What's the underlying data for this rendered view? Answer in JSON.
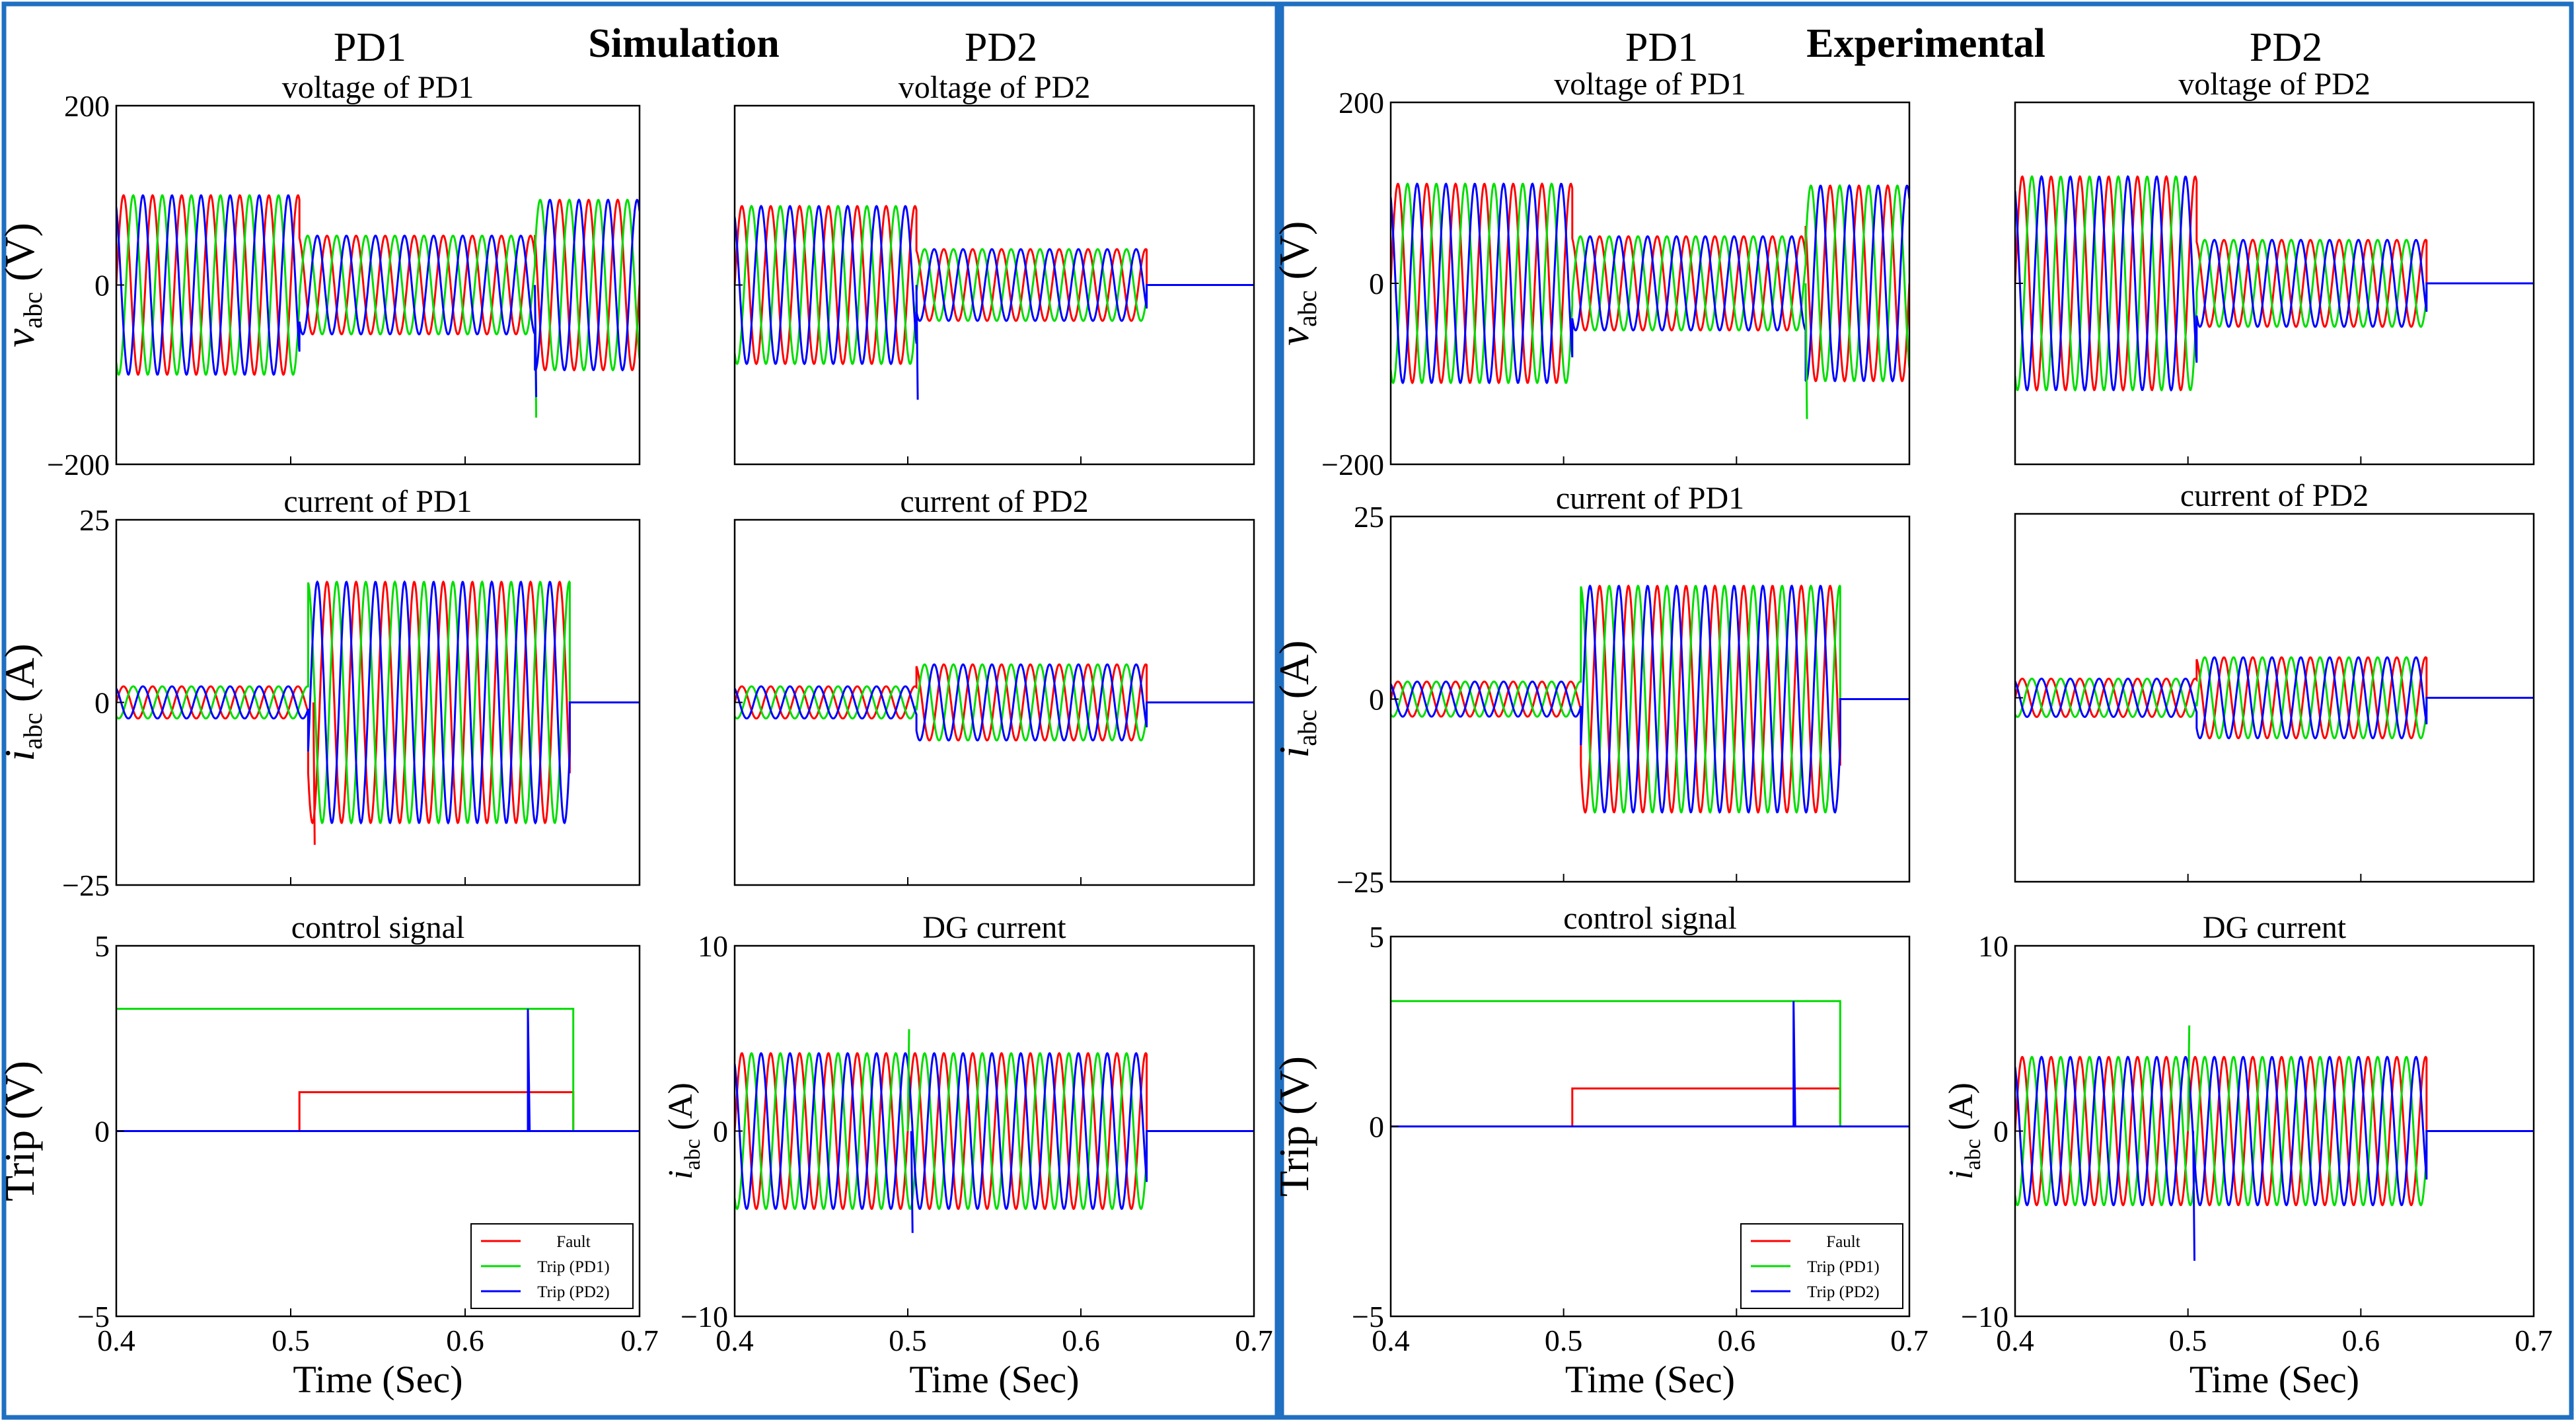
{
  "colors": {
    "frame": "#1f6fc2",
    "axes": "#000000",
    "phase_a": "#ff0000",
    "phase_b": "#00dd00",
    "phase_c": "#0000ff",
    "fault": "#ff0000",
    "trip_pd1": "#00dd00",
    "trip_pd2": "#0000ff"
  },
  "panels": [
    {
      "id": "simulation",
      "title": "Simulation",
      "col_titles": [
        "PD1",
        "PD2"
      ]
    },
    {
      "id": "experimental",
      "title": "Experimental",
      "col_titles": [
        "PD1",
        "PD2"
      ]
    }
  ],
  "x_common": {
    "xlim": [
      0.4,
      0.7
    ],
    "ticks": [
      "0.4",
      "0.5",
      "0.6",
      "0.7"
    ],
    "tick_values": [
      0.4,
      0.5,
      0.6,
      0.7
    ],
    "xlabel": "Time (Sec)"
  },
  "ylabels": {
    "voltage": "v",
    "current": "i",
    "subscript": "abc",
    "voltage_unit": " (V)",
    "current_unit": " (A)",
    "trip": "Trip (V)"
  },
  "legend": {
    "entries": [
      "Fault",
      "Trip (PD1)",
      "Trip (PD2)"
    ]
  },
  "chart_data": [
    {
      "panel": "simulation",
      "col": 0,
      "row": 0,
      "type": "line",
      "title": "voltage of PD1",
      "ylim": [
        -200,
        200
      ],
      "yticks": [
        -200,
        0,
        200
      ],
      "ytick_labels": [
        "−200",
        "0",
        "200"
      ],
      "series": [
        {
          "name": "phase a",
          "segments": [
            {
              "t0": 0.4,
              "t1": 0.505,
              "amp": 100
            },
            {
              "t0": 0.505,
              "t1": 0.64,
              "amp": 55
            },
            {
              "t0": 0.64,
              "t1": 0.7,
              "amp": 95
            }
          ]
        },
        {
          "name": "phase b",
          "segments": [
            {
              "t0": 0.4,
              "t1": 0.505,
              "amp": 100
            },
            {
              "t0": 0.505,
              "t1": 0.64,
              "amp": 55
            },
            {
              "t0": 0.64,
              "t1": 0.7,
              "amp": 95
            }
          ]
        },
        {
          "name": "phase c",
          "segments": [
            {
              "t0": 0.4,
              "t1": 0.505,
              "amp": 100
            },
            {
              "t0": 0.505,
              "t1": 0.64,
              "amp": 55
            },
            {
              "t0": 0.64,
              "t1": 0.7,
              "amp": 95
            }
          ]
        }
      ],
      "spikes": [
        {
          "t": 0.64,
          "v": -148,
          "series": 1
        },
        {
          "t": 0.64,
          "v": -125,
          "series": 2
        }
      ]
    },
    {
      "panel": "simulation",
      "col": 1,
      "row": 0,
      "type": "line",
      "title": "voltage of PD2",
      "ylim": [
        -200,
        200
      ],
      "yticks": [
        -200,
        0,
        200
      ],
      "ytick_labels": [
        "",
        "",
        ""
      ],
      "series": [
        {
          "name": "phase a",
          "segments": [
            {
              "t0": 0.4,
              "t1": 0.505,
              "amp": 88
            },
            {
              "t0": 0.505,
              "t1": 0.638,
              "amp": 40
            }
          ]
        },
        {
          "name": "phase b",
          "segments": [
            {
              "t0": 0.4,
              "t1": 0.505,
              "amp": 88
            },
            {
              "t0": 0.505,
              "t1": 0.638,
              "amp": 40
            }
          ]
        },
        {
          "name": "phase c",
          "segments": [
            {
              "t0": 0.4,
              "t1": 0.505,
              "amp": 88
            },
            {
              "t0": 0.505,
              "t1": 0.638,
              "amp": 40
            }
          ]
        }
      ],
      "spikes": [
        {
          "t": 0.505,
          "v": -128,
          "series": 2
        }
      ]
    },
    {
      "panel": "simulation",
      "col": 0,
      "row": 1,
      "type": "line",
      "title": "current of PD1",
      "ylim": [
        -25,
        25
      ],
      "yticks": [
        -25,
        0,
        25
      ],
      "ytick_labels": [
        "−25",
        "0",
        "25"
      ],
      "series": [
        {
          "name": "phase a",
          "segments": [
            {
              "t0": 0.4,
              "t1": 0.51,
              "amp": 2.2
            },
            {
              "t0": 0.51,
              "t1": 0.66,
              "amp": 16.5
            }
          ]
        },
        {
          "name": "phase b",
          "segments": [
            {
              "t0": 0.4,
              "t1": 0.51,
              "amp": 2.2
            },
            {
              "t0": 0.51,
              "t1": 0.66,
              "amp": 16.5
            }
          ]
        },
        {
          "name": "phase c",
          "segments": [
            {
              "t0": 0.4,
              "t1": 0.51,
              "amp": 2.2
            },
            {
              "t0": 0.51,
              "t1": 0.66,
              "amp": 16.5
            }
          ]
        }
      ],
      "spikes": [
        {
          "t": 0.513,
          "v": -19.5,
          "series": 0
        }
      ]
    },
    {
      "panel": "simulation",
      "col": 1,
      "row": 1,
      "type": "line",
      "title": "current of PD2",
      "ylim": [
        -25,
        25
      ],
      "yticks": [
        -25,
        0,
        25
      ],
      "ytick_labels": [
        "",
        "",
        ""
      ],
      "series": [
        {
          "name": "phase a",
          "segments": [
            {
              "t0": 0.4,
              "t1": 0.505,
              "amp": 2.2
            },
            {
              "t0": 0.505,
              "t1": 0.638,
              "amp": 5.2
            }
          ]
        },
        {
          "name": "phase b",
          "segments": [
            {
              "t0": 0.4,
              "t1": 0.505,
              "amp": 2.2
            },
            {
              "t0": 0.505,
              "t1": 0.638,
              "amp": 5.2
            }
          ]
        },
        {
          "name": "phase c",
          "segments": [
            {
              "t0": 0.4,
              "t1": 0.505,
              "amp": 2.2
            },
            {
              "t0": 0.505,
              "t1": 0.638,
              "amp": 5.2
            }
          ]
        }
      ],
      "spikes": []
    },
    {
      "panel": "simulation",
      "col": 0,
      "row": 2,
      "type": "step",
      "title": "control signal",
      "ylim": [
        -5,
        5
      ],
      "yticks": [
        -5,
        0,
        5
      ],
      "ytick_labels": [
        "−5",
        "0",
        "5"
      ],
      "steps": [
        {
          "name": "Fault",
          "points": [
            [
              0.4,
              0
            ],
            [
              0.505,
              0
            ],
            [
              0.505,
              1.05
            ],
            [
              0.662,
              1.05
            ],
            [
              0.662,
              0
            ],
            [
              0.7,
              0
            ]
          ]
        },
        {
          "name": "Trip (PD1)",
          "points": [
            [
              0.4,
              3.3
            ],
            [
              0.662,
              3.3
            ],
            [
              0.662,
              0
            ],
            [
              0.7,
              0
            ]
          ]
        },
        {
          "name": "Trip (PD2)",
          "points": [
            [
              0.4,
              0
            ],
            [
              0.636,
              0
            ],
            [
              0.636,
              3.3
            ],
            [
              0.637,
              0
            ],
            [
              0.7,
              0
            ]
          ]
        }
      ]
    },
    {
      "panel": "simulation",
      "col": 1,
      "row": 2,
      "type": "line",
      "title": "DG current",
      "ylim": [
        -10,
        10
      ],
      "yticks": [
        -10,
        0,
        10
      ],
      "ytick_labels": [
        "−10",
        "0",
        "10"
      ],
      "series": [
        {
          "name": "phase a",
          "segments": [
            {
              "t0": 0.4,
              "t1": 0.638,
              "amp": 4.2
            }
          ]
        },
        {
          "name": "phase b",
          "segments": [
            {
              "t0": 0.4,
              "t1": 0.638,
              "amp": 4.2
            }
          ]
        },
        {
          "name": "phase c",
          "segments": [
            {
              "t0": 0.4,
              "t1": 0.638,
              "amp": 4.2
            }
          ]
        }
      ],
      "spikes": [
        {
          "t": 0.502,
          "v": -5.5,
          "series": 2
        },
        {
          "t": 0.5,
          "v": 5.5,
          "series": 1
        }
      ]
    },
    {
      "panel": "experimental",
      "col": 0,
      "row": 0,
      "type": "line",
      "title": "voltage of PD1",
      "ylim": [
        -200,
        200
      ],
      "yticks": [
        -200,
        0,
        200
      ],
      "ytick_labels": [
        "−200",
        "0",
        "200"
      ],
      "series": [
        {
          "name": "phase a",
          "segments": [
            {
              "t0": 0.4,
              "t1": 0.505,
              "amp": 110
            },
            {
              "t0": 0.505,
              "t1": 0.64,
              "amp": 52
            },
            {
              "t0": 0.64,
              "t1": 0.7,
              "amp": 108
            }
          ]
        },
        {
          "name": "phase b",
          "segments": [
            {
              "t0": 0.4,
              "t1": 0.505,
              "amp": 110
            },
            {
              "t0": 0.505,
              "t1": 0.64,
              "amp": 52
            },
            {
              "t0": 0.64,
              "t1": 0.7,
              "amp": 108
            }
          ]
        },
        {
          "name": "phase c",
          "segments": [
            {
              "t0": 0.4,
              "t1": 0.505,
              "amp": 110
            },
            {
              "t0": 0.505,
              "t1": 0.64,
              "amp": 52
            },
            {
              "t0": 0.64,
              "t1": 0.7,
              "amp": 108
            }
          ]
        }
      ],
      "spikes": [
        {
          "t": 0.64,
          "v": -150,
          "series": 1
        }
      ]
    },
    {
      "panel": "experimental",
      "col": 1,
      "row": 0,
      "type": "line",
      "title": "voltage of PD2",
      "ylim": [
        -200,
        200
      ],
      "yticks": [
        -200,
        0,
        200
      ],
      "ytick_labels": [
        "",
        "",
        ""
      ],
      "series": [
        {
          "name": "phase a",
          "segments": [
            {
              "t0": 0.4,
              "t1": 0.505,
              "amp": 118
            },
            {
              "t0": 0.505,
              "t1": 0.638,
              "amp": 48
            }
          ]
        },
        {
          "name": "phase b",
          "segments": [
            {
              "t0": 0.4,
              "t1": 0.505,
              "amp": 118
            },
            {
              "t0": 0.505,
              "t1": 0.638,
              "amp": 48
            }
          ]
        },
        {
          "name": "phase c",
          "segments": [
            {
              "t0": 0.4,
              "t1": 0.505,
              "amp": 118
            },
            {
              "t0": 0.505,
              "t1": 0.638,
              "amp": 48
            }
          ]
        }
      ],
      "spikes": []
    },
    {
      "panel": "experimental",
      "col": 0,
      "row": 1,
      "type": "line",
      "title": "current of PD1",
      "ylim": [
        -25,
        25
      ],
      "yticks": [
        -25,
        0,
        25
      ],
      "ytick_labels": [
        "−25",
        "0",
        "25"
      ],
      "series": [
        {
          "name": "phase a",
          "segments": [
            {
              "t0": 0.4,
              "t1": 0.51,
              "amp": 2.4
            },
            {
              "t0": 0.51,
              "t1": 0.66,
              "amp": 15.5
            }
          ]
        },
        {
          "name": "phase b",
          "segments": [
            {
              "t0": 0.4,
              "t1": 0.51,
              "amp": 2.4
            },
            {
              "t0": 0.51,
              "t1": 0.66,
              "amp": 15.5
            }
          ]
        },
        {
          "name": "phase c",
          "segments": [
            {
              "t0": 0.4,
              "t1": 0.51,
              "amp": 2.4
            },
            {
              "t0": 0.51,
              "t1": 0.66,
              "amp": 15.5
            }
          ]
        }
      ],
      "spikes": []
    },
    {
      "panel": "experimental",
      "col": 1,
      "row": 1,
      "type": "line",
      "title": "current of PD2",
      "ylim": [
        -25,
        25
      ],
      "yticks": [
        -25,
        0,
        25
      ],
      "ytick_labels": [
        "",
        "",
        ""
      ],
      "series": [
        {
          "name": "phase a",
          "segments": [
            {
              "t0": 0.4,
              "t1": 0.505,
              "amp": 2.6
            },
            {
              "t0": 0.505,
              "t1": 0.638,
              "amp": 5.5
            }
          ]
        },
        {
          "name": "phase b",
          "segments": [
            {
              "t0": 0.4,
              "t1": 0.505,
              "amp": 2.6
            },
            {
              "t0": 0.505,
              "t1": 0.638,
              "amp": 5.5
            }
          ]
        },
        {
          "name": "phase c",
          "segments": [
            {
              "t0": 0.4,
              "t1": 0.505,
              "amp": 2.6
            },
            {
              "t0": 0.505,
              "t1": 0.638,
              "amp": 5.5
            }
          ]
        }
      ],
      "spikes": []
    },
    {
      "panel": "experimental",
      "col": 0,
      "row": 2,
      "type": "step",
      "title": "control signal",
      "ylim": [
        -5,
        5
      ],
      "yticks": [
        -5,
        0,
        5
      ],
      "ytick_labels": [
        "−5",
        "0",
        "5"
      ],
      "steps": [
        {
          "name": "Fault",
          "points": [
            [
              0.4,
              0
            ],
            [
              0.505,
              0
            ],
            [
              0.505,
              1.0
            ],
            [
              0.66,
              1.0
            ],
            [
              0.66,
              0
            ],
            [
              0.7,
              0
            ]
          ]
        },
        {
          "name": "Trip (PD1)",
          "points": [
            [
              0.4,
              3.3
            ],
            [
              0.66,
              3.3
            ],
            [
              0.66,
              0
            ],
            [
              0.7,
              0
            ]
          ]
        },
        {
          "name": "Trip (PD2)",
          "points": [
            [
              0.4,
              0
            ],
            [
              0.633,
              0
            ],
            [
              0.633,
              3.3
            ],
            [
              0.634,
              0
            ],
            [
              0.7,
              0
            ]
          ]
        }
      ]
    },
    {
      "panel": "experimental",
      "col": 1,
      "row": 2,
      "type": "line",
      "title": "DG current",
      "ylim": [
        -10,
        10
      ],
      "yticks": [
        -10,
        0,
        10
      ],
      "ytick_labels": [
        "−10",
        "0",
        "10"
      ],
      "series": [
        {
          "name": "phase a",
          "segments": [
            {
              "t0": 0.4,
              "t1": 0.638,
              "amp": 4.0
            }
          ]
        },
        {
          "name": "phase b",
          "segments": [
            {
              "t0": 0.4,
              "t1": 0.638,
              "amp": 4.0
            }
          ]
        },
        {
          "name": "phase c",
          "segments": [
            {
              "t0": 0.4,
              "t1": 0.638,
              "amp": 4.0
            }
          ]
        }
      ],
      "spikes": [
        {
          "t": 0.5,
          "v": 5.7,
          "series": 1
        },
        {
          "t": 0.503,
          "v": -7.0,
          "series": 2
        }
      ]
    }
  ]
}
